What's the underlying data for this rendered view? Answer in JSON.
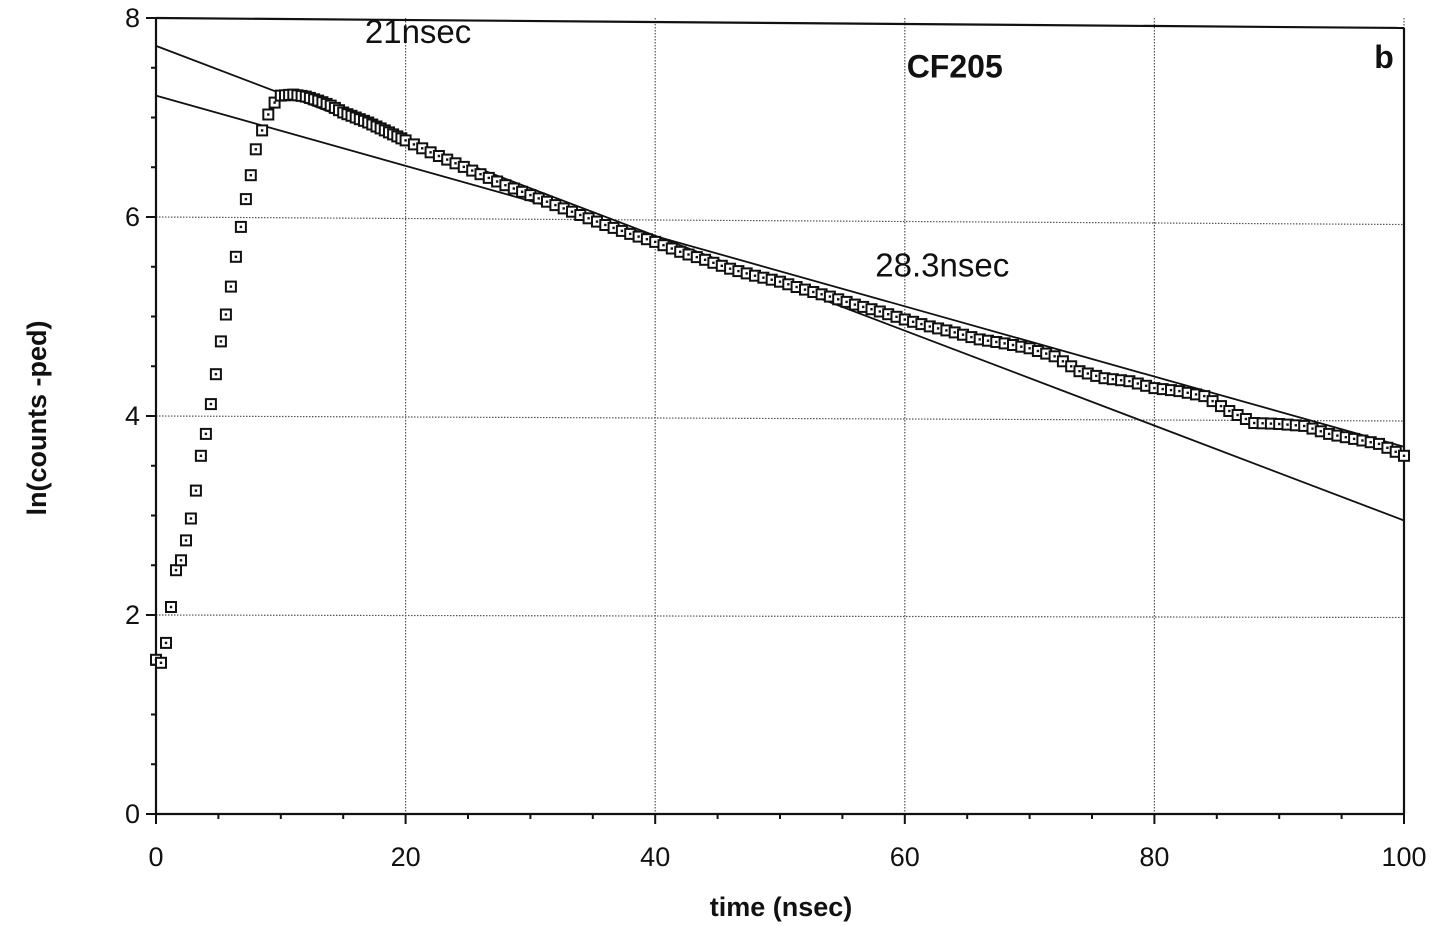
{
  "chart_data": {
    "type": "scatter",
    "xlabel": "time  (nsec)",
    "ylabel": "ln(counts  -ped)",
    "xlim": [
      0,
      100
    ],
    "ylim": [
      0,
      8
    ],
    "x_ticks": [
      0,
      20,
      40,
      60,
      80,
      100
    ],
    "y_ticks": [
      0,
      2,
      4,
      6,
      8
    ],
    "grid": true,
    "annotations": [
      {
        "text": "21nsec",
        "x": 21,
        "y": 7.75
      },
      {
        "text": "CF205",
        "x": 64,
        "y": 7.4,
        "bold": true
      },
      {
        "text": "b",
        "x": 98.4,
        "y": 7.5,
        "bold": true
      },
      {
        "text": "28.3nsec",
        "x": 63,
        "y": 5.4
      }
    ],
    "series": [
      {
        "type": "scatter",
        "marker": "square",
        "x": [
          0,
          0.4,
          0.8,
          1.2,
          1.6,
          2.0,
          2.4,
          2.8,
          3.2,
          3.6,
          4.0,
          4.4,
          4.8,
          5.2,
          5.6,
          6.0,
          6.4,
          6.8,
          7.2,
          7.6,
          8.0,
          8.5,
          9.0,
          9.5,
          10,
          11,
          12,
          13,
          14,
          15,
          16,
          17,
          18,
          19,
          20,
          22,
          24,
          26,
          28,
          30,
          32,
          34,
          36,
          38,
          40,
          42,
          44,
          46,
          48,
          50,
          52,
          54,
          56,
          58,
          60,
          62,
          64,
          66,
          68,
          70,
          72,
          74,
          76,
          78,
          80,
          82,
          84,
          86,
          88,
          90,
          92,
          94,
          96,
          98,
          100
        ],
        "y": [
          1.55,
          1.52,
          1.72,
          2.08,
          2.45,
          2.55,
          2.75,
          2.97,
          3.25,
          3.6,
          3.82,
          4.12,
          4.42,
          4.75,
          5.02,
          5.3,
          5.6,
          5.9,
          6.18,
          6.42,
          6.68,
          6.87,
          7.03,
          7.15,
          7.22,
          7.23,
          7.21,
          7.17,
          7.12,
          7.05,
          7.0,
          6.95,
          6.89,
          6.83,
          6.77,
          6.65,
          6.54,
          6.43,
          6.32,
          6.22,
          6.12,
          6.02,
          5.92,
          5.83,
          5.75,
          5.65,
          5.57,
          5.48,
          5.41,
          5.35,
          5.27,
          5.2,
          5.12,
          5.05,
          4.97,
          4.9,
          4.84,
          4.77,
          4.73,
          4.68,
          4.6,
          4.45,
          4.38,
          4.35,
          4.28,
          4.25,
          4.2,
          4.05,
          3.93,
          3.92,
          3.9,
          3.82,
          3.77,
          3.72,
          3.6
        ]
      },
      {
        "type": "line",
        "label": "21nsec",
        "x": [
          0,
          100
        ],
        "y": [
          7.72,
          2.95
        ]
      },
      {
        "type": "line",
        "label": "28.3nsec",
        "x": [
          0,
          100
        ],
        "y": [
          7.22,
          3.69
        ]
      }
    ]
  }
}
